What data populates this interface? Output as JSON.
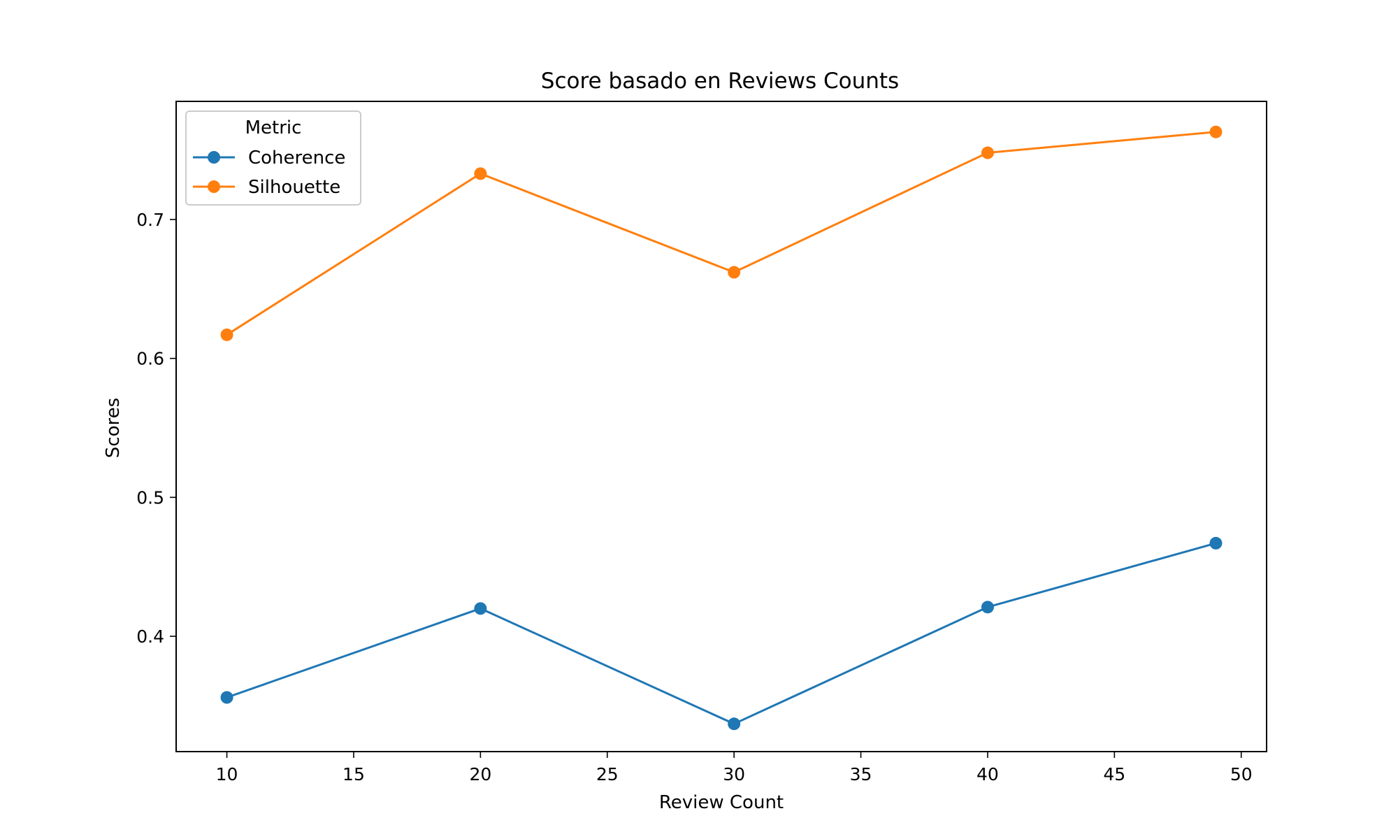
{
  "chart_data": {
    "type": "line",
    "title": "Score basado en Reviews Counts",
    "xlabel": "Review Count",
    "ylabel": "Scores",
    "x": [
      10,
      20,
      30,
      40,
      49
    ],
    "xlim": [
      8,
      51
    ],
    "ylim": [
      0.317,
      0.785
    ],
    "xticks": [
      10,
      15,
      20,
      25,
      30,
      35,
      40,
      45,
      50
    ],
    "yticks": [
      0.4,
      0.5,
      0.6,
      0.7
    ],
    "grid": false,
    "legend": {
      "title": "Metric",
      "placement": "top-left"
    },
    "series": [
      {
        "name": "Coherence",
        "color": "#1f77b4",
        "values": [
          0.356,
          0.42,
          0.337,
          0.421,
          0.467
        ]
      },
      {
        "name": "Silhouette",
        "color": "#ff7f0e",
        "values": [
          0.617,
          0.733,
          0.662,
          0.748,
          0.763
        ]
      }
    ]
  }
}
